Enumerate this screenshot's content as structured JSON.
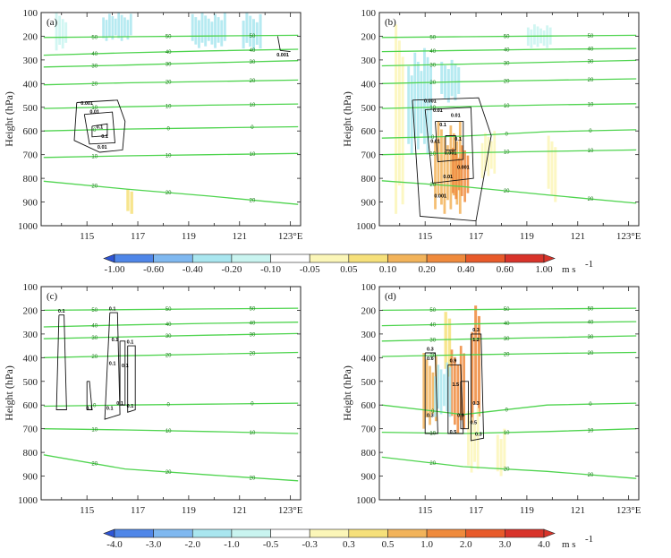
{
  "chart_data": {
    "type": "contour",
    "x_ticks": [
      "115",
      "117",
      "119",
      "121",
      "123°E"
    ],
    "x_values": [
      115,
      117,
      119,
      121,
      123
    ],
    "xlim": [
      113.2,
      123.4
    ],
    "y_ticks": [
      "100",
      "200",
      "300",
      "400",
      "500",
      "600",
      "700",
      "800",
      "900",
      "1000"
    ],
    "y_values": [
      100,
      200,
      300,
      400,
      500,
      600,
      700,
      800,
      900,
      1000
    ],
    "ylim": [
      100,
      1000
    ],
    "ylabel": "Height (hPa)",
    "panels": [
      {
        "label": "(a)",
        "green_contours": [
          {
            "label": "50",
            "y": [
              205,
              202,
              199,
              196
            ]
          },
          {
            "label": "40",
            "y": [
              280,
              270,
              262,
              255
            ]
          },
          {
            "label": "30",
            "y": [
              330,
              322,
              312,
              303
            ]
          },
          {
            "label": "20",
            "y": [
              405,
              397,
              391,
              385
            ]
          },
          {
            "label": "10",
            "y": [
              505,
              498,
              491,
              486
            ]
          },
          {
            "label": "0",
            "y": [
              600,
              592,
              587,
              582
            ]
          },
          {
            "label": "10",
            "y": [
              712,
              705,
              700,
              695
            ]
          },
          {
            "label": "20",
            "y": [
              812,
              845,
              875,
              910
            ]
          }
        ],
        "black_labels": [
          "0.001",
          "0.01",
          "0.1",
          "0.1",
          "0.01",
          "0.001"
        ],
        "shading": [
          {
            "x": 114.0,
            "ptop": 100,
            "pbot": 260,
            "w": 0.5,
            "c": 4
          },
          {
            "x": 116.2,
            "ptop": 100,
            "pbot": 220,
            "w": 1.2,
            "c": 3
          },
          {
            "x": 119.8,
            "ptop": 100,
            "pbot": 250,
            "w": 1.4,
            "c": 3
          },
          {
            "x": 121.5,
            "ptop": 100,
            "pbot": 260,
            "w": 0.8,
            "c": 3
          },
          {
            "x": 114.0,
            "ptop": 480,
            "pbot": 980,
            "w": 0.4,
            "c": 5
          },
          {
            "x": 115.2,
            "ptop": 680,
            "pbot": 900,
            "w": 0.3,
            "c": 5
          },
          {
            "x": 116.7,
            "ptop": 830,
            "pbot": 950,
            "w": 0.3,
            "c": 7
          }
        ]
      },
      {
        "label": "(b)",
        "green_contours": [
          {
            "label": "50",
            "y": [
              205,
              202,
              199,
              196
            ]
          },
          {
            "label": "40",
            "y": [
              265,
              260,
              255,
              252
            ]
          },
          {
            "label": "30",
            "y": [
              325,
              318,
              310,
              302
            ]
          },
          {
            "label": "20",
            "y": [
              400,
              392,
              386,
              380
            ]
          },
          {
            "label": "10",
            "y": [
              505,
              497,
              490,
              485
            ]
          },
          {
            "label": "0",
            "y": [
              630,
              622,
              603,
              595
            ]
          },
          {
            "label": "10",
            "y": [
              700,
              692,
              686,
              680
            ]
          },
          {
            "label": "20",
            "y": [
              810,
              835,
              870,
              905
            ]
          }
        ],
        "black_labels": [
          "0.001",
          "0.01",
          "0.1",
          "0.01",
          "0.001",
          "0.01",
          "0.1",
          "0.001",
          "0.01",
          "0.001"
        ],
        "shading": [
          {
            "x": 114.0,
            "ptop": 150,
            "pbot": 950,
            "w": 0.4,
            "c": 6
          },
          {
            "x": 114.8,
            "ptop": 250,
            "pbot": 700,
            "w": 1.0,
            "c": 3
          },
          {
            "x": 116.0,
            "ptop": 300,
            "pbot": 480,
            "w": 0.8,
            "c": 3
          },
          {
            "x": 115.9,
            "ptop": 560,
            "pbot": 950,
            "w": 1.1,
            "c": 8
          },
          {
            "x": 116.4,
            "ptop": 650,
            "pbot": 900,
            "w": 0.7,
            "c": 9
          },
          {
            "x": 117.5,
            "ptop": 600,
            "pbot": 800,
            "w": 0.6,
            "c": 6
          },
          {
            "x": 119.5,
            "ptop": 150,
            "pbot": 250,
            "w": 1.0,
            "c": 4
          },
          {
            "x": 120.0,
            "ptop": 620,
            "pbot": 900,
            "w": 0.4,
            "c": 6
          }
        ]
      },
      {
        "label": "(c)",
        "green_contours": [
          {
            "label": "50",
            "y": [
              200,
              197,
              194,
              191
            ]
          },
          {
            "label": "40",
            "y": [
              270,
              262,
              255,
              250
            ]
          },
          {
            "label": "30",
            "y": [
              320,
              312,
              305,
              298
            ]
          },
          {
            "label": "20",
            "y": [
              400,
              392,
              385,
              378
            ]
          },
          {
            "label": "0",
            "y": [
              605,
              600,
              596,
              592
            ]
          },
          {
            "label": "10",
            "y": [
              700,
              705,
              712,
              720
            ]
          },
          {
            "label": "20",
            "y": [
              810,
              870,
              895,
              920
            ]
          }
        ],
        "black_labels": [
          "0.1",
          "0.1",
          "0.1",
          "0.1",
          "0.1",
          "0.1",
          "0.1",
          "0.1",
          "0.1",
          "0.1"
        ],
        "shading": []
      },
      {
        "label": "(d)",
        "green_contours": [
          {
            "label": "50",
            "y": [
              200,
              197,
              194,
              191
            ]
          },
          {
            "label": "40",
            "y": [
              265,
              258,
              252,
              248
            ]
          },
          {
            "label": "30",
            "y": [
              330,
              322,
              315,
              308
            ]
          },
          {
            "label": "20",
            "y": [
              395,
              388,
              382,
              378
            ]
          },
          {
            "label": "0",
            "y": [
              600,
              640,
              600,
              592
            ]
          },
          {
            "label": "10",
            "y": [
              715,
              720,
              712,
              700
            ]
          },
          {
            "label": "20",
            "y": [
              820,
              860,
              880,
              910
            ]
          }
        ],
        "black_labels": [
          "0.3",
          "0.6",
          "0.3",
          "0.9",
          "1.5",
          "0.9",
          "0.5",
          "0.3",
          "1.2",
          "0.3",
          "0.5",
          "0.3"
        ],
        "shading": [
          {
            "x": 115.2,
            "ptop": 380,
            "pbot": 700,
            "w": 0.6,
            "c": 8
          },
          {
            "x": 115.9,
            "ptop": 150,
            "pbot": 480,
            "w": 0.3,
            "c": 7
          },
          {
            "x": 116.3,
            "ptop": 350,
            "pbot": 720,
            "w": 0.6,
            "c": 9
          },
          {
            "x": 117.0,
            "ptop": 180,
            "pbot": 700,
            "w": 0.4,
            "c": 9
          },
          {
            "x": 116.9,
            "ptop": 600,
            "pbot": 900,
            "w": 0.5,
            "c": 6
          },
          {
            "x": 115.7,
            "ptop": 420,
            "pbot": 650,
            "w": 0.7,
            "c": 3
          },
          {
            "x": 118.0,
            "ptop": 700,
            "pbot": 900,
            "w": 0.4,
            "c": 6
          }
        ]
      }
    ],
    "colorbars": [
      {
        "labels": [
          "-1.00",
          "-0.60",
          "-0.40",
          "-0.20",
          "-0.10",
          "-0.05",
          "0.05",
          "0.10",
          "0.20",
          "0.40",
          "0.60",
          "1.00"
        ],
        "unit": "m s",
        "unit_exp": "-1"
      },
      {
        "labels": [
          "-4.0",
          "-3.0",
          "-2.0",
          "-1.0",
          "-0.5",
          "-0.3",
          "0.3",
          "0.5",
          "1.0",
          "2.0",
          "3.0",
          "4.0"
        ],
        "unit": "m s",
        "unit_exp": "-1"
      }
    ],
    "colors": [
      "#2e55d6",
      "#4f86e8",
      "#7fb8f0",
      "#a9e6ef",
      "#c9f4f0",
      "#ffffff",
      "#fbf6b8",
      "#f6e07a",
      "#f2b35a",
      "#ef8a3c",
      "#e85a2a",
      "#d8332a"
    ]
  }
}
